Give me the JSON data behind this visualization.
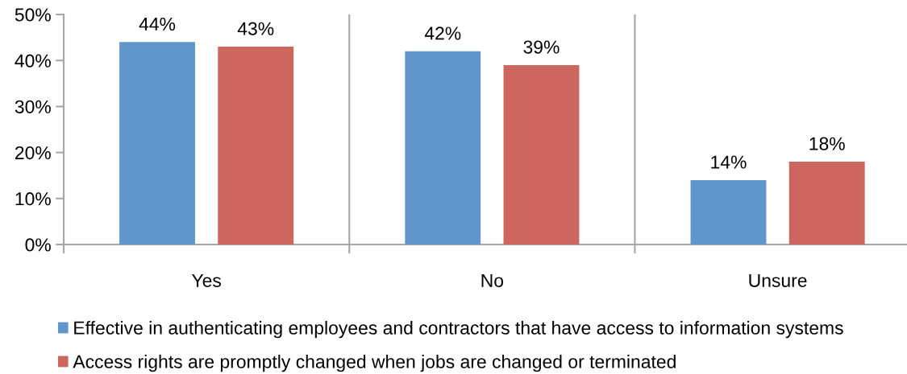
{
  "chart_data": {
    "type": "bar",
    "categories": [
      "Yes",
      "No",
      "Unsure"
    ],
    "series": [
      {
        "name": "Effective in authenticating employees and contractors that have access to information systems",
        "color": "#6096ca",
        "values": [
          44,
          42,
          14
        ],
        "value_labels": [
          "44%",
          "42%",
          "14%"
        ]
      },
      {
        "name": "Access rights are promptly changed when jobs are changed or terminated",
        "color": "#cd665f",
        "values": [
          43,
          39,
          18
        ],
        "value_labels": [
          "43%",
          "39%",
          "18%"
        ]
      }
    ],
    "ylim": [
      0,
      50
    ],
    "yticks": [
      {
        "value": 0,
        "label": "0%"
      },
      {
        "value": 10,
        "label": "10%"
      },
      {
        "value": 20,
        "label": "20%"
      },
      {
        "value": 30,
        "label": "30%"
      },
      {
        "value": 40,
        "label": "40%"
      },
      {
        "value": 50,
        "label": "50%"
      }
    ],
    "grid": "x",
    "legend": "bottom"
  }
}
